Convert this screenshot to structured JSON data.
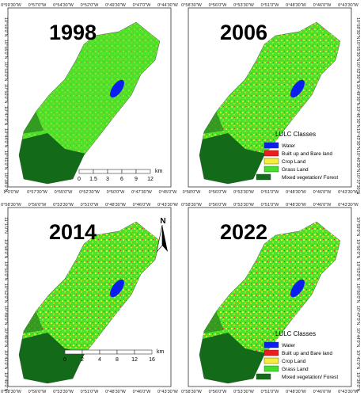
{
  "panels": [
    {
      "year": "1998",
      "top_labels": [
        "0°59'30\"W",
        "0°57'0\"W",
        "0°54'30\"W",
        "0°52'0\"W",
        "0°49'30\"W",
        "0°47'0\"W",
        "0°44'30\"W"
      ],
      "bottom_labels": [
        "1°0'0\"W",
        "0°57'30\"W",
        "0°55'0\"W",
        "0°52'30\"W",
        "0°50'0\"W",
        "0°47'30\"W",
        "0°45'0\"W"
      ],
      "side_labels": [
        "10°59'0\"N",
        "10°56'0\"N",
        "10°53'0\"N",
        "10°50'0\"N",
        "10°47'0\"N",
        "10°44'0\"N",
        "10°41'0\"N",
        "10°38'0\"N"
      ]
    },
    {
      "year": "2006",
      "top_labels": [
        "0°58'30\"W",
        "0°56'0\"W",
        "0°53'30\"W",
        "0°51'0\"W",
        "0°48'30\"W",
        "0°46'0\"W",
        "0°43'30\"W"
      ],
      "bottom_labels": [
        "0°58'0\"W",
        "0°56'0\"W",
        "0°53'30\"W",
        "0°51'0\"W",
        "0°48'30\"W",
        "0°46'0\"W",
        "0°43'30\"W"
      ],
      "side_labels": [
        "10°58'30\"N",
        "10°55'30\"N",
        "10°52'30\"N",
        "10°49'30\"N",
        "10°46'30\"N",
        "10°43'30\"N",
        "10°40'30\"N",
        "10°37'30\"N"
      ]
    },
    {
      "year": "2014",
      "top_labels": [
        "0°58'30\"W",
        "0°56'0\"W",
        "0°53'30\"W",
        "0°51'0\"W",
        "0°48'30\"W",
        "0°46'0\"W",
        "0°43'30\"W"
      ],
      "bottom_labels": [
        "0°58'30\"W",
        "0°56'0\"W",
        "0°53'30\"W",
        "0°51'0\"W",
        "0°48'30\"W",
        "0°46'0\"W",
        "0°43'30\"W"
      ],
      "side_labels": [
        "11°1'0\"N",
        "10°58'0\"N",
        "10°55'0\"N",
        "10°52'0\"N",
        "10°49'0\"N",
        "10°46'0\"N",
        "10°43'0\"N",
        "10°40'0\"N"
      ]
    },
    {
      "year": "2022",
      "top_labels": [
        "0°58'30\"W",
        "0°56'0\"W",
        "0°53'30\"W",
        "0°51'0\"W",
        "0°48'30\"W",
        "0°46'0\"W",
        "0°43'30\"W"
      ],
      "bottom_labels": [
        "0°58'30\"W",
        "0°56'0\"W",
        "0°53'30\"W",
        "0°51'0\"W",
        "0°48'30\"W",
        "0°46'0\"W",
        "0°43'30\"W"
      ],
      "side_labels": [
        "10°59'0\"N",
        "10°56'0\"N",
        "10°53'0\"N",
        "10°50'0\"N",
        "10°47'0\"N",
        "10°44'0\"N",
        "10°41'0\"N",
        "10°38'0\"N"
      ]
    }
  ],
  "legend": {
    "title": "LULC Classes",
    "items": [
      {
        "label": "Water",
        "color": "#0a1ef0"
      },
      {
        "label": "Built up and Bare land",
        "color": "#ee1c1c"
      },
      {
        "label": "Crop Land",
        "color": "#f5ef3a"
      },
      {
        "label": "Grass Land",
        "color": "#44e02a"
      },
      {
        "label": "Mixed vegetation/ Forest",
        "color": "#136b1a"
      }
    ]
  },
  "scale_bars": [
    {
      "ticks": [
        "0",
        "1.5",
        "3",
        "6",
        "9",
        "12"
      ],
      "unit": "km"
    },
    {
      "ticks": [
        "0",
        "2",
        "4",
        "8",
        "12",
        "16"
      ],
      "unit": "km"
    }
  ],
  "north": "N"
}
